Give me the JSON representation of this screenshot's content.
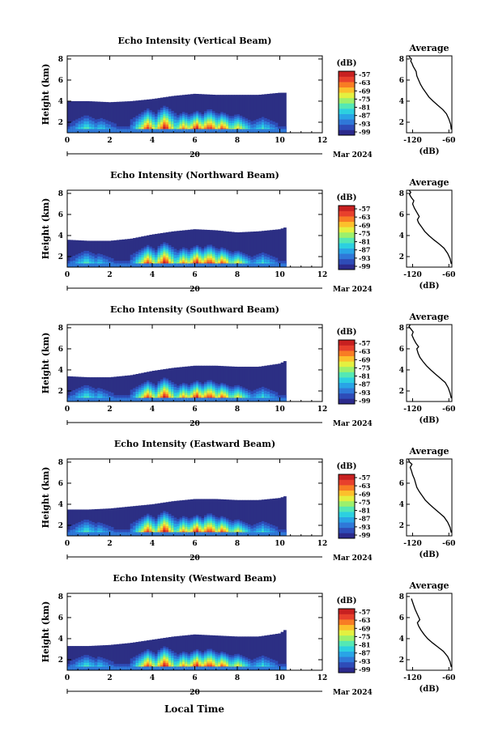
{
  "figure": {
    "bottom_xlabel": "Local Time",
    "colorbar_unit": "(dB)",
    "colorbar_ticks": [
      "-57",
      "-63",
      "-69",
      "-75",
      "-81",
      "-87",
      "-93",
      "-99"
    ],
    "colormap": [
      "#2c2a8c",
      "#2e4cb8",
      "#2f78d8",
      "#29a4e6",
      "#2cd0e0",
      "#54e8b4",
      "#9cf06c",
      "#e4f040",
      "#fcc02c",
      "#f87c24",
      "#e8402c",
      "#c82020"
    ],
    "no_echo_color": "#2c2f84",
    "date_label": "Mar 2024",
    "day_label": "20"
  },
  "chart_data": [
    {
      "type": "heatmap",
      "title": "Echo Intensity (Vertical Beam)",
      "xlabel": "",
      "ylabel": "Height (km)",
      "x_ticks": [
        "0",
        "2",
        "4",
        "6",
        "8",
        "10",
        "12"
      ],
      "y_ticks": [
        "2",
        "4",
        "6",
        "8"
      ],
      "xlim": [
        0,
        12
      ],
      "ylim": [
        1,
        8.3
      ],
      "data_end_hour": 10.3,
      "echo_top_km": [
        [
          0,
          4.0
        ],
        [
          1,
          4.0
        ],
        [
          2,
          3.9
        ],
        [
          3,
          4.0
        ],
        [
          4,
          4.2
        ],
        [
          5,
          4.5
        ],
        [
          6,
          4.7
        ],
        [
          7,
          4.6
        ],
        [
          8,
          4.6
        ],
        [
          9,
          4.6
        ],
        [
          10,
          4.8
        ],
        [
          10.3,
          4.8
        ]
      ],
      "intensity_cores": [
        {
          "hour": 0.9,
          "top_km": 2.7,
          "level": 5
        },
        {
          "hour": 1.6,
          "top_km": 2.4,
          "level": 4
        },
        {
          "hour": 3.8,
          "top_km": 3.3,
          "level": 10
        },
        {
          "hour": 4.6,
          "top_km": 3.6,
          "level": 11
        },
        {
          "hour": 5.5,
          "top_km": 3.0,
          "level": 9
        },
        {
          "hour": 6.1,
          "top_km": 3.1,
          "level": 11
        },
        {
          "hour": 6.7,
          "top_km": 3.3,
          "level": 11
        },
        {
          "hour": 7.3,
          "top_km": 3.0,
          "level": 10
        },
        {
          "hour": 8.0,
          "top_km": 2.8,
          "level": 8
        },
        {
          "hour": 9.2,
          "top_km": 2.5,
          "level": 5
        }
      ],
      "average_profile": {
        "title": "Average",
        "xlabel": "(dB)",
        "x_ticks": [
          "-120",
          "-60"
        ],
        "y_ticks": [
          "2",
          "4",
          "6",
          "8"
        ],
        "xlim": [
          -130,
          -55
        ],
        "ylim": [
          1,
          8.3
        ],
        "x": [
          -56,
          -57,
          -60,
          -64,
          -70,
          -78,
          -86,
          -93,
          -98,
          -103,
          -107,
          -110,
          -113,
          -114,
          -116,
          -119,
          -121,
          -123,
          -122,
          -124,
          -126
        ],
        "y": [
          1.3,
          1.8,
          2.3,
          2.8,
          3.2,
          3.6,
          4.0,
          4.4,
          4.8,
          5.2,
          5.6,
          6.0,
          6.4,
          6.8,
          7.0,
          7.3,
          7.6,
          7.8,
          8.0,
          8.1,
          8.3
        ]
      }
    },
    {
      "type": "heatmap",
      "title": "Echo Intensity (Northward Beam)",
      "xlabel": "",
      "ylabel": "Height (km)",
      "x_ticks": [
        "0",
        "2",
        "4",
        "6",
        "8",
        "10",
        "12"
      ],
      "y_ticks": [
        "2",
        "4",
        "6",
        "8"
      ],
      "xlim": [
        0,
        12
      ],
      "ylim": [
        1,
        8.3
      ],
      "data_end_hour": 10.3,
      "echo_top_km": [
        [
          0,
          3.6
        ],
        [
          1,
          3.5
        ],
        [
          2,
          3.5
        ],
        [
          3,
          3.7
        ],
        [
          4,
          4.1
        ],
        [
          5,
          4.4
        ],
        [
          6,
          4.6
        ],
        [
          7,
          4.5
        ],
        [
          8,
          4.3
        ],
        [
          9,
          4.4
        ],
        [
          10,
          4.6
        ],
        [
          10.3,
          4.8
        ]
      ],
      "intensity_cores": [
        {
          "hour": 0.9,
          "top_km": 2.6,
          "level": 5
        },
        {
          "hour": 1.5,
          "top_km": 2.3,
          "level": 4
        },
        {
          "hour": 3.8,
          "top_km": 3.1,
          "level": 10
        },
        {
          "hour": 4.6,
          "top_km": 3.4,
          "level": 11
        },
        {
          "hour": 5.5,
          "top_km": 2.9,
          "level": 9
        },
        {
          "hour": 6.1,
          "top_km": 3.1,
          "level": 11
        },
        {
          "hour": 6.7,
          "top_km": 3.2,
          "level": 11
        },
        {
          "hour": 7.3,
          "top_km": 2.9,
          "level": 10
        },
        {
          "hour": 8.0,
          "top_km": 2.6,
          "level": 8
        },
        {
          "hour": 9.2,
          "top_km": 2.4,
          "level": 5
        }
      ],
      "average_profile": {
        "title": "Average",
        "xlabel": "(dB)",
        "x_ticks": [
          "-120",
          "-60"
        ],
        "y_ticks": [
          "2",
          "4",
          "6",
          "8"
        ],
        "xlim": [
          -130,
          -55
        ],
        "ylim": [
          1,
          8.3
        ],
        "x": [
          -56,
          -58,
          -62,
          -68,
          -76,
          -85,
          -93,
          -100,
          -105,
          -110,
          -112,
          -109,
          -113,
          -117,
          -120,
          -118,
          -122,
          -125,
          -123,
          -126
        ],
        "y": [
          1.3,
          1.8,
          2.3,
          2.8,
          3.2,
          3.6,
          4.0,
          4.4,
          4.8,
          5.2,
          5.5,
          5.8,
          6.2,
          6.6,
          7.0,
          7.3,
          7.6,
          7.9,
          8.1,
          8.3
        ]
      }
    },
    {
      "type": "heatmap",
      "title": "Echo Intensity (Southward Beam)",
      "xlabel": "",
      "ylabel": "Height (km)",
      "x_ticks": [
        "0",
        "2",
        "4",
        "6",
        "8",
        "10",
        "12"
      ],
      "y_ticks": [
        "2",
        "4",
        "6",
        "8"
      ],
      "xlim": [
        0,
        12
      ],
      "ylim": [
        1,
        8.3
      ],
      "data_end_hour": 10.3,
      "echo_top_km": [
        [
          0,
          3.4
        ],
        [
          1,
          3.3
        ],
        [
          2,
          3.3
        ],
        [
          3,
          3.5
        ],
        [
          4,
          3.9
        ],
        [
          5,
          4.2
        ],
        [
          6,
          4.4
        ],
        [
          7,
          4.4
        ],
        [
          8,
          4.3
        ],
        [
          9,
          4.3
        ],
        [
          10,
          4.6
        ],
        [
          10.3,
          4.9
        ]
      ],
      "intensity_cores": [
        {
          "hour": 0.9,
          "top_km": 2.6,
          "level": 5
        },
        {
          "hour": 1.5,
          "top_km": 2.3,
          "level": 4
        },
        {
          "hour": 3.8,
          "top_km": 3.0,
          "level": 10
        },
        {
          "hour": 4.6,
          "top_km": 3.3,
          "level": 11
        },
        {
          "hour": 5.5,
          "top_km": 2.8,
          "level": 9
        },
        {
          "hour": 6.1,
          "top_km": 3.0,
          "level": 11
        },
        {
          "hour": 6.7,
          "top_km": 3.1,
          "level": 11
        },
        {
          "hour": 7.3,
          "top_km": 2.8,
          "level": 10
        },
        {
          "hour": 8.0,
          "top_km": 2.6,
          "level": 8
        },
        {
          "hour": 9.2,
          "top_km": 2.4,
          "level": 5
        }
      ],
      "average_profile": {
        "title": "Average",
        "xlabel": "(dB)",
        "x_ticks": [
          "-120",
          "-60"
        ],
        "y_ticks": [
          "2",
          "4",
          "6",
          "8"
        ],
        "xlim": [
          -130,
          -55
        ],
        "ylim": [
          1,
          8.3
        ],
        "x": [
          -56,
          -58,
          -61,
          -66,
          -74,
          -82,
          -90,
          -97,
          -103,
          -108,
          -111,
          -113,
          -110,
          -114,
          -118,
          -121,
          -119,
          -123,
          -126,
          -124
        ],
        "y": [
          1.3,
          1.8,
          2.3,
          2.8,
          3.2,
          3.6,
          4.0,
          4.4,
          4.8,
          5.2,
          5.6,
          6.0,
          6.2,
          6.5,
          6.9,
          7.3,
          7.6,
          7.9,
          8.1,
          8.3
        ]
      }
    },
    {
      "type": "heatmap",
      "title": "Echo Intensity (Eastward Beam)",
      "xlabel": "",
      "ylabel": "Height (km)",
      "x_ticks": [
        "0",
        "2",
        "4",
        "6",
        "8",
        "10",
        "12"
      ],
      "y_ticks": [
        "2",
        "4",
        "6",
        "8"
      ],
      "xlim": [
        0,
        12
      ],
      "ylim": [
        1,
        8.3
      ],
      "data_end_hour": 10.3,
      "echo_top_km": [
        [
          0,
          3.5
        ],
        [
          1,
          3.5
        ],
        [
          2,
          3.6
        ],
        [
          3,
          3.8
        ],
        [
          4,
          4.0
        ],
        [
          5,
          4.3
        ],
        [
          6,
          4.5
        ],
        [
          7,
          4.5
        ],
        [
          8,
          4.4
        ],
        [
          9,
          4.4
        ],
        [
          10,
          4.6
        ],
        [
          10.3,
          4.8
        ]
      ],
      "intensity_cores": [
        {
          "hour": 0.9,
          "top_km": 2.6,
          "level": 5
        },
        {
          "hour": 1.5,
          "top_km": 2.3,
          "level": 4
        },
        {
          "hour": 3.8,
          "top_km": 3.1,
          "level": 10
        },
        {
          "hour": 4.6,
          "top_km": 3.4,
          "level": 11
        },
        {
          "hour": 5.5,
          "top_km": 2.9,
          "level": 9
        },
        {
          "hour": 6.1,
          "top_km": 3.0,
          "level": 11
        },
        {
          "hour": 6.7,
          "top_km": 3.2,
          "level": 11
        },
        {
          "hour": 7.3,
          "top_km": 2.9,
          "level": 10
        },
        {
          "hour": 8.0,
          "top_km": 2.6,
          "level": 8
        },
        {
          "hour": 9.2,
          "top_km": 2.4,
          "level": 5
        }
      ],
      "average_profile": {
        "title": "Average",
        "xlabel": "(dB)",
        "x_ticks": [
          "-120",
          "-60"
        ],
        "y_ticks": [
          "2",
          "4",
          "6",
          "8"
        ],
        "xlim": [
          -130,
          -55
        ],
        "ylim": [
          1,
          8.3
        ],
        "x": [
          -56,
          -58,
          -62,
          -68,
          -76,
          -84,
          -92,
          -99,
          -104,
          -109,
          -113,
          -115,
          -117,
          -120,
          -122,
          -124,
          -121,
          -125,
          -127
        ],
        "y": [
          1.3,
          1.8,
          2.3,
          2.8,
          3.2,
          3.6,
          4.0,
          4.4,
          4.8,
          5.2,
          5.6,
          6.0,
          6.4,
          6.8,
          7.2,
          7.5,
          7.8,
          8.0,
          8.3
        ]
      }
    },
    {
      "type": "heatmap",
      "title": "Echo Intensity (Westward Beam)",
      "xlabel": "Local Time",
      "ylabel": "Height (km)",
      "x_ticks": [
        "0",
        "2",
        "4",
        "6",
        "8",
        "10",
        "12"
      ],
      "y_ticks": [
        "2",
        "4",
        "6",
        "8"
      ],
      "xlim": [
        0,
        12
      ],
      "ylim": [
        1,
        8.3
      ],
      "data_end_hour": 10.3,
      "echo_top_km": [
        [
          0,
          3.3
        ],
        [
          1,
          3.3
        ],
        [
          2,
          3.4
        ],
        [
          3,
          3.6
        ],
        [
          4,
          3.9
        ],
        [
          5,
          4.2
        ],
        [
          6,
          4.4
        ],
        [
          7,
          4.3
        ],
        [
          8,
          4.2
        ],
        [
          9,
          4.2
        ],
        [
          10,
          4.5
        ],
        [
          10.3,
          4.9
        ]
      ],
      "intensity_cores": [
        {
          "hour": 0.9,
          "top_km": 2.5,
          "level": 5
        },
        {
          "hour": 1.5,
          "top_km": 2.3,
          "level": 4
        },
        {
          "hour": 3.8,
          "top_km": 3.0,
          "level": 10
        },
        {
          "hour": 4.6,
          "top_km": 3.3,
          "level": 11
        },
        {
          "hour": 5.5,
          "top_km": 2.8,
          "level": 9
        },
        {
          "hour": 6.1,
          "top_km": 3.0,
          "level": 11
        },
        {
          "hour": 6.7,
          "top_km": 3.1,
          "level": 11
        },
        {
          "hour": 7.3,
          "top_km": 2.8,
          "level": 10
        },
        {
          "hour": 8.0,
          "top_km": 2.6,
          "level": 8
        },
        {
          "hour": 9.2,
          "top_km": 2.4,
          "level": 5
        }
      ],
      "average_profile": {
        "title": "Average",
        "xlabel": "(dB)",
        "x_ticks": [
          "-120",
          "-60"
        ],
        "y_ticks": [
          "2",
          "4",
          "6",
          "8"
        ],
        "xlim": [
          -130,
          -55
        ],
        "ylim": [
          1,
          8.3
        ],
        "x": [
          -56,
          -58,
          -62,
          -69,
          -78,
          -87,
          -95,
          -101,
          -106,
          -110,
          -112,
          -108,
          -112,
          -116,
          -119,
          -122
        ],
        "y": [
          1.3,
          1.8,
          2.3,
          2.8,
          3.2,
          3.6,
          4.0,
          4.4,
          4.8,
          5.2,
          5.5,
          5.8,
          6.3,
          6.8,
          7.3,
          7.8
        ]
      }
    }
  ]
}
